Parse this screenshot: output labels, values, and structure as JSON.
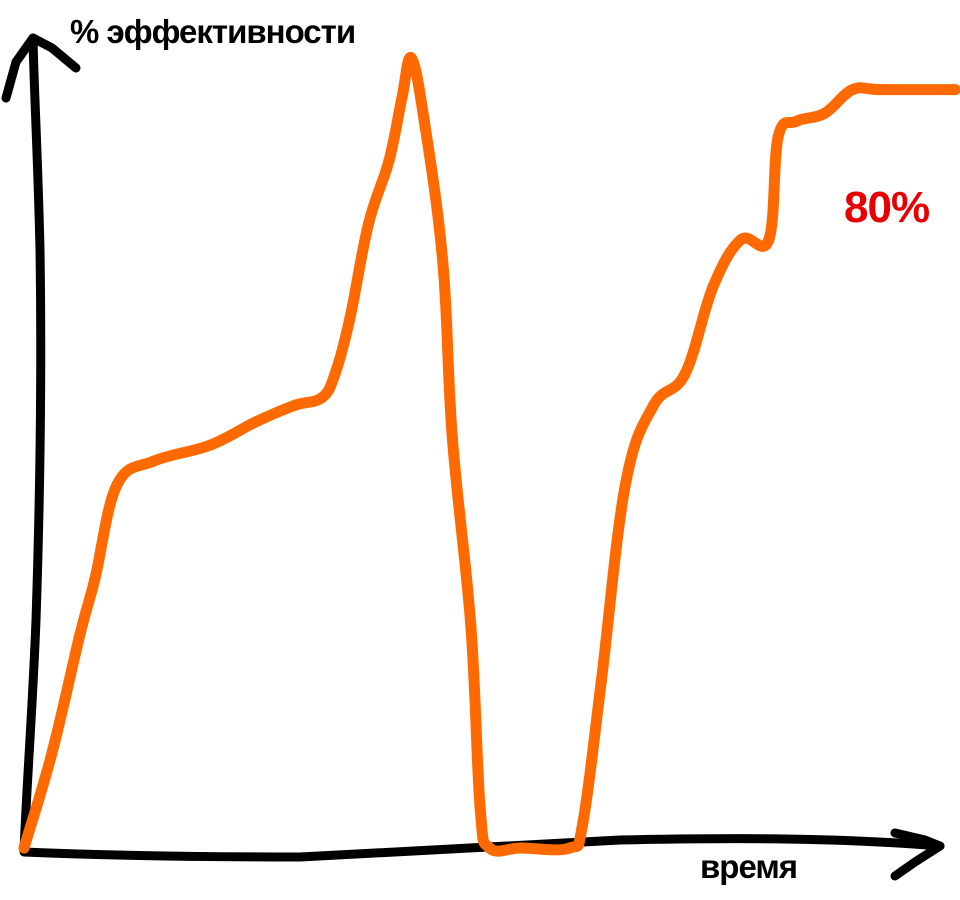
{
  "chart_data": {
    "type": "line",
    "title": "",
    "ylabel": "% эффективности",
    "xlabel": "время",
    "grid": false,
    "legend": "none",
    "series": [
      {
        "points": [
          [
            0,
            0
          ],
          [
            1.5,
            12
          ],
          [
            3,
            27
          ],
          [
            3.8,
            34
          ],
          [
            5,
            46
          ],
          [
            7,
            49
          ],
          [
            10,
            51
          ],
          [
            12.5,
            54
          ],
          [
            14.5,
            56
          ],
          [
            16,
            57
          ],
          [
            16.7,
            60
          ],
          [
            17.5,
            67
          ],
          [
            18.5,
            79
          ],
          [
            19.6,
            87
          ],
          [
            20.3,
            95
          ],
          [
            20.8,
            100
          ],
          [
            21.5,
            92
          ],
          [
            22.5,
            74
          ],
          [
            23,
            52
          ],
          [
            24,
            28
          ],
          [
            24.5,
            5
          ],
          [
            25,
            0
          ],
          [
            26.7,
            0
          ],
          [
            29.3,
            0
          ],
          [
            30,
            3
          ],
          [
            31,
            21
          ],
          [
            32.3,
            46
          ],
          [
            33.8,
            56
          ],
          [
            35.5,
            60
          ],
          [
            37,
            71
          ],
          [
            38.5,
            77
          ],
          [
            40,
            77
          ],
          [
            40.5,
            90
          ],
          [
            41.5,
            92
          ],
          [
            43,
            93
          ],
          [
            44.5,
            96
          ],
          [
            46,
            96
          ],
          [
            50,
            96
          ]
        ]
      }
    ],
    "annotations": [
      {
        "text": "80%"
      }
    ],
    "colors": {
      "line": "#ff6a00",
      "axes": "#000000",
      "annotation": "#e60000"
    }
  }
}
